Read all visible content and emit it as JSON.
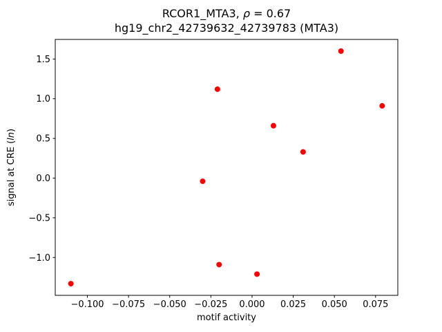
{
  "chart_data": {
    "type": "scatter",
    "title": {
      "line1_prefix": "RCOR1_MTA3, ",
      "line1_rho": "ρ",
      "line1_suffix": " = 0.67",
      "line2": "hg19_chr2_42739632_42739783 (MTA3)"
    },
    "xlabel": "motif activity",
    "ylabel_prefix": "signal at CRE (",
    "ylabel_italic": "ln",
    "ylabel_suffix": ")",
    "xlim": [
      -0.1195,
      0.0885
    ],
    "ylim": [
      -1.477,
      1.747
    ],
    "xticks": {
      "values": [
        -0.1,
        -0.075,
        -0.05,
        -0.025,
        0.0,
        0.025,
        0.05,
        0.075
      ],
      "labels": [
        "−0.100",
        "−0.075",
        "−0.050",
        "−0.025",
        "0.000",
        "0.025",
        "0.050",
        "0.075"
      ]
    },
    "yticks": {
      "values": [
        -1.0,
        -0.5,
        0.0,
        0.5,
        1.0,
        1.5
      ],
      "labels": [
        "−1.0",
        "−0.5",
        "0.0",
        "0.5",
        "1.0",
        "1.5"
      ]
    },
    "marker_color": "#ff0000",
    "axis_color": "#000000",
    "legend": "none",
    "grid": false,
    "points": [
      [
        -0.11,
        -1.33
      ],
      [
        -0.03,
        -0.04
      ],
      [
        -0.021,
        1.12
      ],
      [
        -0.02,
        -1.09
      ],
      [
        0.003,
        -1.21
      ],
      [
        0.013,
        0.66
      ],
      [
        0.031,
        0.33
      ],
      [
        0.054,
        1.6
      ],
      [
        0.079,
        0.91
      ]
    ]
  }
}
